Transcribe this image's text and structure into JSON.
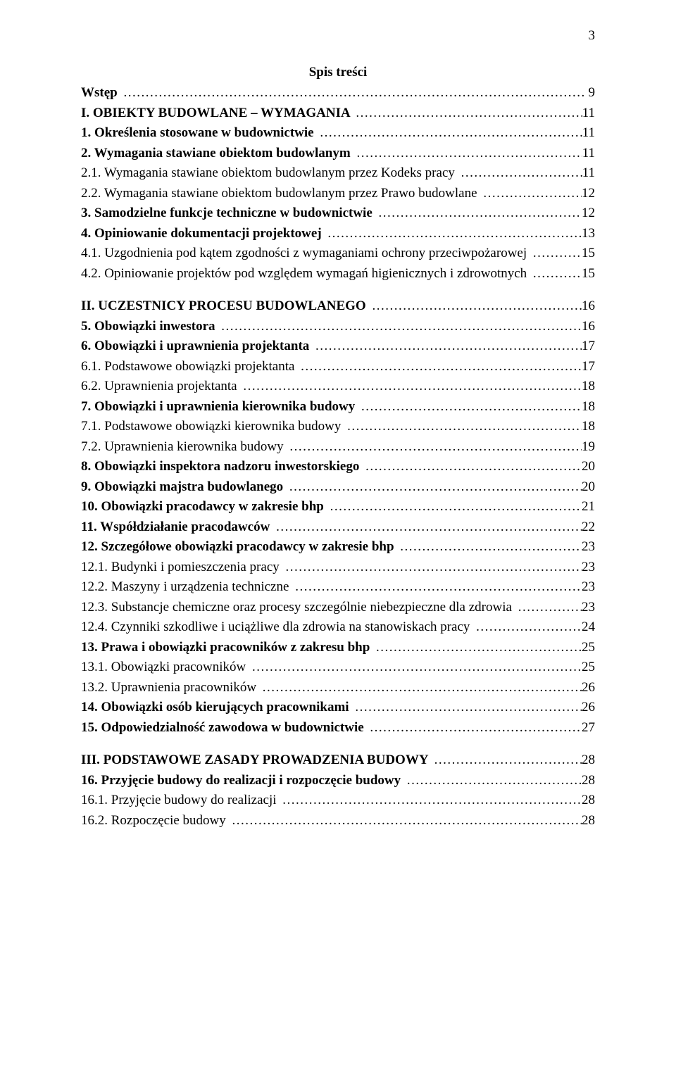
{
  "page_number": "3",
  "toc_title": "Spis treści",
  "entries": [
    {
      "label": "Wstęp",
      "bold": true,
      "page": "9"
    },
    {
      "label": "I. OBIEKTY BUDOWLANE – WYMAGANIA",
      "bold": true,
      "page": "11"
    },
    {
      "label": "1. Określenia stosowane w budownictwie",
      "bold": true,
      "page": "11"
    },
    {
      "label": "2. Wymagania stawiane obiektom budowlanym",
      "bold": true,
      "page": "11"
    },
    {
      "label": "2.1. Wymagania stawiane obiektom budowlanym przez Kodeks pracy",
      "bold": false,
      "page": "11"
    },
    {
      "label": "2.2. Wymagania stawiane obiektom budowlanym przez Prawo budowlane",
      "bold": false,
      "page": "12"
    },
    {
      "label": "3. Samodzielne funkcje techniczne w budownictwie",
      "bold": true,
      "page": "12"
    },
    {
      "label": "4. Opiniowanie dokumentacji projektowej",
      "bold": true,
      "page": "13"
    },
    {
      "label": "4.1. Uzgodnienia pod kątem zgodności z wymaganiami ochrony przeciwpożarowej",
      "bold": false,
      "page": "15"
    },
    {
      "label": "4.2. Opiniowanie projektów pod względem wymagań higienicznych i zdrowotnych",
      "bold": false,
      "page": "15"
    },
    {
      "gap": true
    },
    {
      "label": "II. UCZESTNICY PROCESU BUDOWLANEGO",
      "bold": true,
      "page": "16"
    },
    {
      "label": "5. Obowiązki inwestora",
      "bold": true,
      "page": "16"
    },
    {
      "label": "6. Obowiązki i uprawnienia projektanta",
      "bold": true,
      "page": "17"
    },
    {
      "label": "6.1. Podstawowe obowiązki projektanta",
      "bold": false,
      "page": "17"
    },
    {
      "label": "6.2. Uprawnienia projektanta",
      "bold": false,
      "page": "18"
    },
    {
      "label": "7. Obowiązki i uprawnienia kierownika budowy",
      "bold": true,
      "page": "18"
    },
    {
      "label": "7.1. Podstawowe obowiązki kierownika budowy",
      "bold": false,
      "page": "18"
    },
    {
      "label": "7.2. Uprawnienia kierownika budowy",
      "bold": false,
      "page": "19"
    },
    {
      "label": "8. Obowiązki inspektora nadzoru inwestorskiego",
      "bold": true,
      "page": "20"
    },
    {
      "label": "9. Obowiązki majstra budowlanego",
      "bold": true,
      "page": "20"
    },
    {
      "label": "10. Obowiązki pracodawcy w zakresie bhp",
      "bold": true,
      "page": "21"
    },
    {
      "label": "11. Współdziałanie pracodawców",
      "bold": true,
      "page": "22"
    },
    {
      "label": "12. Szczegółowe obowiązki pracodawcy w zakresie bhp",
      "bold": true,
      "page": "23"
    },
    {
      "label": "12.1. Budynki i pomieszczenia pracy",
      "bold": false,
      "page": "23"
    },
    {
      "label": "12.2. Maszyny i urządzenia techniczne",
      "bold": false,
      "page": "23"
    },
    {
      "label": "12.3. Substancje chemiczne oraz procesy szczególnie niebezpieczne dla zdrowia",
      "bold": false,
      "page": "23"
    },
    {
      "label": "12.4. Czynniki szkodliwe i uciążliwe dla zdrowia na stanowiskach pracy",
      "bold": false,
      "page": "24"
    },
    {
      "label": "13. Prawa i obowiązki pracowników z zakresu bhp",
      "bold": true,
      "page": "25"
    },
    {
      "label": "13.1. Obowiązki pracowników",
      "bold": false,
      "page": "25"
    },
    {
      "label": "13.2. Uprawnienia pracowników",
      "bold": false,
      "page": "26"
    },
    {
      "label": "14. Obowiązki osób kierujących pracownikami",
      "bold": true,
      "page": "26"
    },
    {
      "label": "15. Odpowiedzialność zawodowa w budownictwie",
      "bold": true,
      "page": "27"
    },
    {
      "gap": true
    },
    {
      "label": "III. PODSTAWOWE ZASADY PROWADZENIA BUDOWY",
      "bold": true,
      "page": "28"
    },
    {
      "label": "16. Przyjęcie budowy do realizacji i rozpoczęcie budowy",
      "bold": true,
      "page": "28"
    },
    {
      "label": "16.1. Przyjęcie budowy do realizacji",
      "bold": false,
      "page": "28"
    },
    {
      "label": "16.2. Rozpoczęcie budowy",
      "bold": false,
      "page": "28"
    }
  ]
}
